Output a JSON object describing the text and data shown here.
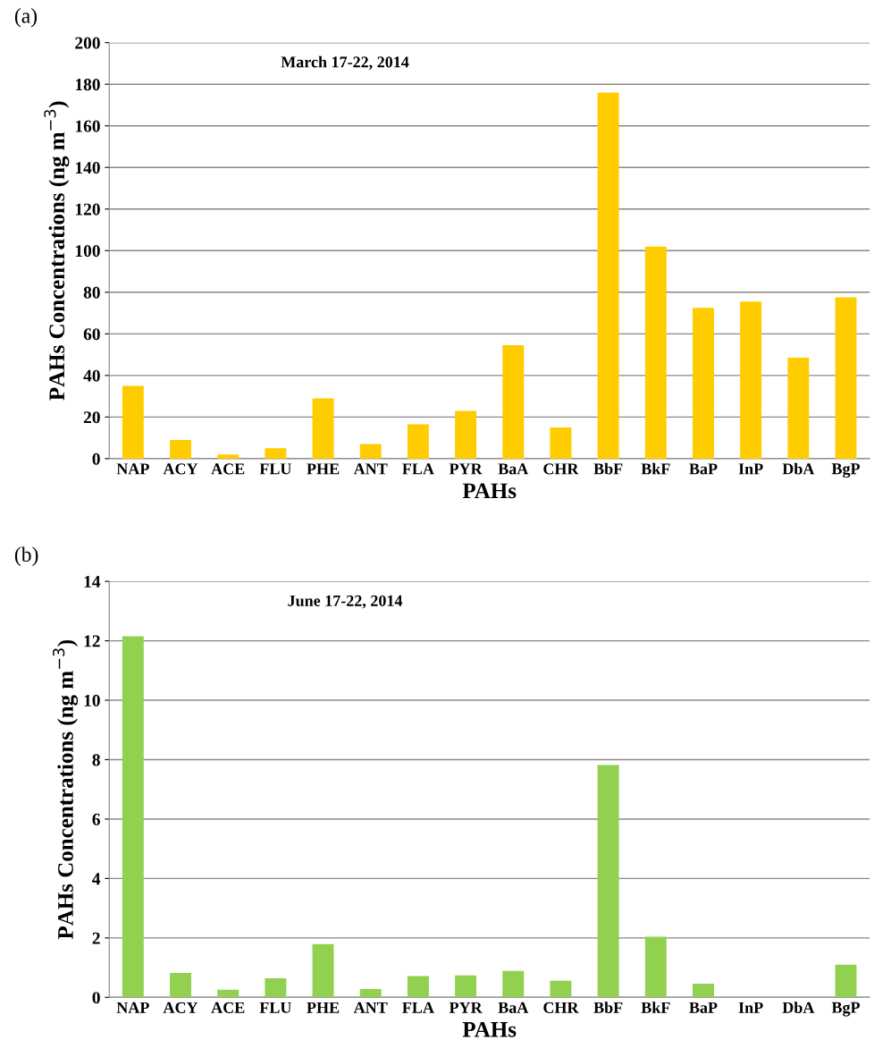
{
  "chart_data": [
    {
      "type": "bar",
      "title": "March 17-22, 2014",
      "xlabel": "PAHs",
      "ylabel": "PAHs Concentrations (ng m$^{−3}$)",
      "annotations": [
        "(a)"
      ],
      "categories": [
        "NAP",
        "ACY",
        "ACE",
        "FLU",
        "PHE",
        "ANT",
        "FLA",
        "PYR",
        "BaA",
        "CHR",
        "BbF",
        "BkF",
        "BaP",
        "InP",
        "DbA",
        "BgP"
      ],
      "series": [
        {
          "color": "#ffcc00",
          "values": [
            35,
            9,
            2,
            5,
            29,
            7,
            16.5,
            23,
            54.5,
            15,
            176,
            102,
            72.5,
            75.5,
            48.5,
            77.5
          ]
        }
      ],
      "ylim": [
        0,
        200
      ],
      "yticks": [
        0,
        20,
        40,
        60,
        80,
        100,
        120,
        140,
        160,
        180,
        200
      ],
      "grid": "y",
      "legend": false
    },
    {
      "type": "bar",
      "title": "June 17-22, 2014",
      "xlabel": "PAHs",
      "ylabel": "PAHs Concentrations (ng m$^{−3}$)",
      "annotations": [
        "(b)"
      ],
      "categories": [
        "NAP",
        "ACY",
        "ACE",
        "FLU",
        "PHE",
        "ANT",
        "FLA",
        "PYR",
        "BaA",
        "CHR",
        "BbF",
        "BkF",
        "BaP",
        "InP",
        "DbA",
        "BgP"
      ],
      "series": [
        {
          "color": "#92d050",
          "values": [
            12.15,
            0.82,
            0.26,
            0.64,
            1.79,
            0.28,
            0.72,
            0.74,
            0.89,
            0.56,
            7.82,
            2.04,
            0.46,
            0,
            0,
            1.1
          ]
        }
      ],
      "ylim": [
        0,
        14
      ],
      "yticks": [
        0,
        2,
        4,
        6,
        8,
        10,
        12,
        14
      ],
      "grid": "y",
      "legend": false
    }
  ]
}
